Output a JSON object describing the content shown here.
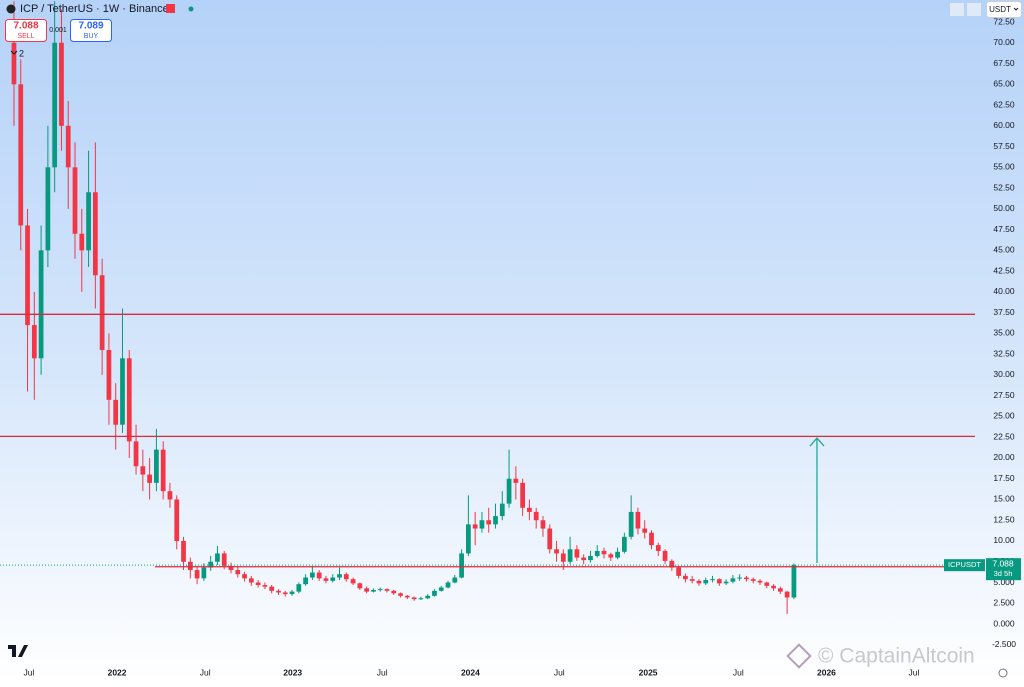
{
  "header": {
    "title": "ICP / TetherUS · 1W · Binance",
    "sell_price": "7.088",
    "sell": "SELL",
    "spread": "0.001",
    "buy_price": "7.089",
    "buy": "BUY",
    "indicators": "2",
    "currency": "USDT"
  },
  "watermark": "© CaptainAltcoin",
  "chart_data": {
    "type": "candlestick",
    "symbol": "ICPUSDT",
    "countdown": "3d 5h",
    "up_color": "#089981",
    "down_color": "#f23645",
    "grid": false,
    "open": [
      70,
      65,
      48,
      36,
      32,
      45,
      55,
      70,
      60,
      55,
      47,
      45,
      52,
      42,
      33,
      27,
      24,
      32,
      22,
      19,
      18,
      17,
      21,
      16,
      15,
      10,
      7.5,
      6.5,
      5.5,
      6.8,
      7.5,
      8.5,
      7,
      6.5,
      6,
      5.5,
      5,
      4.7,
      4.5,
      4,
      3.8,
      3.6,
      3.9,
      4.8,
      5.6,
      6.2,
      5.5,
      5.2,
      5.6,
      6,
      5.4,
      4.9,
      4.3,
      3.9,
      4.1,
      4.2,
      4,
      3.7,
      3.4,
      3.2,
      3,
      3.1,
      3.4,
      4,
      4.4,
      5,
      5.6,
      8.5,
      12,
      11.5,
      12.5,
      12,
      13,
      14.5,
      17.5,
      17,
      14,
      13.5,
      12.5,
      11.5,
      9,
      8.5,
      7.5,
      9,
      8,
      7.7,
      8.2,
      8.8,
      8.4,
      8,
      8.7,
      10.5,
      13.5,
      11.5,
      11,
      9.5,
      8.8,
      7.6,
      6.8,
      5.8,
      5.4,
      5.2,
      4.9,
      5.3,
      5.4,
      4.9,
      5.1,
      5.5,
      5.6,
      5.4,
      5.2,
      5,
      4.6,
      4.3,
      3.9,
      3.2
    ],
    "high": [
      75,
      68,
      50,
      40,
      48,
      60,
      75,
      74,
      63,
      58,
      50,
      57,
      58,
      44,
      35,
      29,
      38,
      33,
      24,
      21,
      20,
      23.5,
      22,
      17,
      15.5,
      10.5,
      8,
      7,
      7.3,
      8.2,
      9.4,
      8.8,
      7.4,
      6.9,
      6.3,
      5.8,
      5.3,
      5,
      4.7,
      4.2,
      4,
      4.1,
      5,
      6,
      7,
      6.5,
      5.8,
      6,
      6.8,
      6.2,
      5.6,
      5,
      4.5,
      4.3,
      4.4,
      4.3,
      4.1,
      3.8,
      3.5,
      3.3,
      3.3,
      3.6,
      4.2,
      4.6,
      5.2,
      5.9,
      9,
      15.5,
      13.5,
      13.5,
      14,
      14.5,
      16,
      21,
      19,
      17.5,
      15,
      14,
      13,
      12,
      10,
      9,
      10.5,
      9.5,
      8.4,
      8.8,
      9.5,
      9.2,
      8.6,
      9.2,
      11,
      15.5,
      14,
      12.5,
      11.3,
      9.8,
      9,
      7.8,
      7,
      6.1,
      5.8,
      5.4,
      5.6,
      5.8,
      5.5,
      5.4,
      5.9,
      6,
      5.8,
      5.6,
      5.4,
      5.1,
      4.8,
      4.5,
      4,
      7.3
    ],
    "low": [
      60,
      45,
      28,
      27,
      30,
      43,
      52,
      57,
      50,
      44,
      40,
      43,
      38,
      30,
      24,
      21,
      23,
      20,
      18,
      16,
      15,
      16,
      15,
      14,
      9,
      6.5,
      5.5,
      4.8,
      5.2,
      6.4,
      7.1,
      6.6,
      6.1,
      5.6,
      5.1,
      4.6,
      4.4,
      4.2,
      3.7,
      3.5,
      3.3,
      3.4,
      3.7,
      4.6,
      5.3,
      5.2,
      4.9,
      5,
      5.3,
      5.1,
      4.7,
      4.1,
      3.7,
      3.8,
      3.9,
      3.8,
      3.5,
      3.2,
      3,
      2.8,
      2.9,
      3,
      3.3,
      3.9,
      4.3,
      4.9,
      5.5,
      8.2,
      9.5,
      11,
      11,
      11.5,
      12.5,
      14,
      15,
      13,
      12.5,
      11.5,
      10.5,
      8.5,
      7.5,
      6.5,
      7.2,
      7.6,
      7.2,
      7.4,
      8,
      7.9,
      7.6,
      7.8,
      8.5,
      10.2,
      10.8,
      10.3,
      9,
      8.2,
      7.2,
      6.4,
      5.5,
      5,
      4.9,
      4.6,
      4.7,
      5,
      4.6,
      4.7,
      4.9,
      5.2,
      5.1,
      4.9,
      4.7,
      4.3,
      4,
      3.6,
      1.2,
      3
    ],
    "close": [
      65,
      48,
      36,
      32,
      45,
      55,
      70,
      60,
      55,
      47,
      45,
      52,
      42,
      33,
      27,
      24,
      32,
      22,
      19,
      18,
      17,
      21,
      16,
      15,
      10,
      7.5,
      6.5,
      5.5,
      6.8,
      7.5,
      8.5,
      7,
      6.5,
      6,
      5.5,
      5,
      4.7,
      4.5,
      4,
      3.8,
      3.6,
      3.9,
      4.8,
      5.6,
      6.2,
      5.5,
      5.2,
      5.6,
      6,
      5.4,
      4.9,
      4.3,
      3.9,
      4.1,
      4.2,
      4,
      3.7,
      3.4,
      3.2,
      3,
      3.1,
      3.4,
      4,
      4.4,
      5,
      5.6,
      8.5,
      12,
      11.5,
      12.5,
      12,
      13,
      14.5,
      17.5,
      17,
      14,
      13.5,
      12.5,
      11.5,
      9,
      8.5,
      7.5,
      9,
      8,
      7.7,
      8.2,
      8.8,
      8.4,
      8,
      8.7,
      10.5,
      13.5,
      11.5,
      11,
      9.5,
      8.8,
      7.6,
      6.8,
      5.8,
      5.4,
      5.2,
      4.9,
      5.3,
      5.4,
      4.9,
      5.1,
      5.5,
      5.6,
      5.4,
      5.2,
      5,
      4.6,
      4.3,
      3.9,
      3.2,
      7.088
    ],
    "xlim": [
      -2.06,
      141.7
    ],
    "xticks": [
      {
        "value": 2.2,
        "label": "Jul"
      },
      {
        "value": 15.2,
        "label": "2022"
      },
      {
        "value": 28.2,
        "label": "Jul"
      },
      {
        "value": 41.1,
        "label": "2023"
      },
      {
        "value": 54.3,
        "label": "Jul"
      },
      {
        "value": 67.3,
        "label": "2024"
      },
      {
        "value": 80.4,
        "label": "Jul"
      },
      {
        "value": 93.5,
        "label": "2025"
      },
      {
        "value": 106.8,
        "label": "Jul"
      },
      {
        "value": 119.8,
        "label": "2026"
      },
      {
        "value": 132.7,
        "label": "Jul"
      }
    ],
    "ylim": [
      -3.73,
      75.15
    ],
    "yticks": [
      {
        "value": -2.5,
        "label": "-2.500"
      },
      {
        "value": 0,
        "label": "0.000"
      },
      {
        "value": 2.5,
        "label": "2.500"
      },
      {
        "value": 5,
        "label": "5.000"
      },
      {
        "value": 7.5,
        "label": "7.500"
      },
      {
        "value": 10,
        "label": "10.00"
      },
      {
        "value": 12.5,
        "label": "12.50"
      },
      {
        "value": 15,
        "label": "15.00"
      },
      {
        "value": 17.5,
        "label": "17.50"
      },
      {
        "value": 20,
        "label": "20.00"
      },
      {
        "value": 22.5,
        "label": "22.50"
      },
      {
        "value": 25,
        "label": "25.00"
      },
      {
        "value": 27.5,
        "label": "27.50"
      },
      {
        "value": 30,
        "label": "30.00"
      },
      {
        "value": 32.5,
        "label": "32.50"
      },
      {
        "value": 35,
        "label": "35.00"
      },
      {
        "value": 37.5,
        "label": "37.50"
      },
      {
        "value": 40,
        "label": "40.00"
      },
      {
        "value": 42.5,
        "label": "42.50"
      },
      {
        "value": 45,
        "label": "45.00"
      },
      {
        "value": 47.5,
        "label": "47.50"
      },
      {
        "value": 50,
        "label": "50.00"
      },
      {
        "value": 52.5,
        "label": "52.50"
      },
      {
        "value": 55,
        "label": "55.00"
      },
      {
        "value": 57.5,
        "label": "57.50"
      },
      {
        "value": 60,
        "label": "60.00"
      },
      {
        "value": 62.5,
        "label": "62.50"
      },
      {
        "value": 65,
        "label": "65.00"
      },
      {
        "value": 67.5,
        "label": "67.50"
      },
      {
        "value": 70,
        "label": "70.00"
      },
      {
        "value": 72.5,
        "label": "72.50"
      }
    ],
    "levels": [
      {
        "value": 37.3,
        "start": -2.06,
        "color": "#e0283c"
      },
      {
        "value": 22.6,
        "start": -2.06,
        "color": "#e0283c"
      },
      {
        "value": 6.9,
        "start": 20.8,
        "color": "#e0283c"
      }
    ],
    "arrow": {
      "x": 118.4,
      "from": 7.35,
      "to": 22.4,
      "color": "#26a69a"
    }
  }
}
